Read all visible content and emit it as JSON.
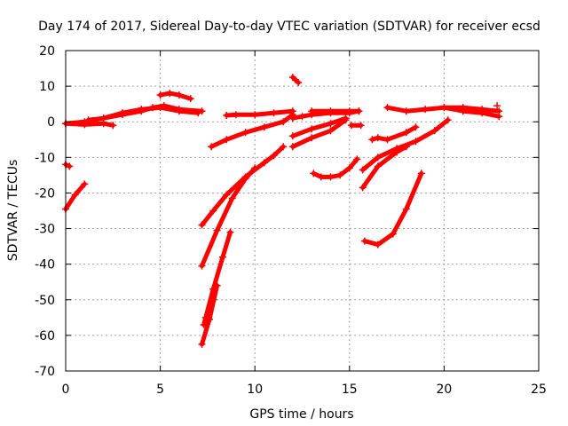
{
  "chart_data": {
    "type": "scatter",
    "title": "Day 174 of 2017, Sidereal Day-to-day VTEC variation (SDTVAR) for receiver ecsd",
    "xlabel": "GPS time / hours",
    "ylabel": "SDTVAR / TECUs",
    "xlim": [
      0,
      25
    ],
    "ylim": [
      -70,
      20
    ],
    "xticks": [
      "0",
      "5",
      "10",
      "15",
      "20",
      "25"
    ],
    "yticks": [
      "-70",
      "-60",
      "-50",
      "-40",
      "-30",
      "-20",
      "-10",
      "0",
      "10",
      "20"
    ],
    "grid": true,
    "legend": "none",
    "marker": "plus",
    "color": "#ff0000",
    "series": [
      {
        "x": [
          0.0,
          1.0,
          2.0,
          3.0,
          4.0,
          4.6,
          5.2,
          6.0,
          7.2
        ],
        "y": [
          -0.5,
          0.0,
          1.0,
          2.0,
          3.0,
          4.0,
          4.5,
          3.5,
          3.0
        ]
      },
      {
        "x": [
          0.0,
          1.0,
          2.0,
          2.5
        ],
        "y": [
          -0.5,
          -0.8,
          -0.5,
          -1.0
        ]
      },
      {
        "x": [
          1.2,
          2.0,
          3.0,
          4.0,
          5.0,
          6.0,
          7.0
        ],
        "y": [
          0.5,
          1.0,
          2.5,
          3.5,
          4.0,
          3.0,
          2.5
        ]
      },
      {
        "x": [
          5.0,
          5.5,
          6.0,
          6.6
        ],
        "y": [
          7.5,
          8.0,
          7.5,
          6.5
        ]
      },
      {
        "x": [
          0.0,
          0.2
        ],
        "y": [
          -12.0,
          -12.5
        ]
      },
      {
        "x": [
          0.0,
          0.5,
          1.0
        ],
        "y": [
          -24.5,
          -20.5,
          -17.5
        ]
      },
      {
        "x": [
          7.7,
          8.5,
          9.5,
          10.5,
          11.5,
          12.0
        ],
        "y": [
          -7.0,
          -5.0,
          -3.0,
          -1.5,
          0.0,
          2.0
        ]
      },
      {
        "x": [
          8.5,
          9.0,
          10.0,
          11.0,
          12.0
        ],
        "y": [
          1.8,
          2.0,
          2.0,
          2.5,
          3.0
        ]
      },
      {
        "x": [
          12.0,
          12.3
        ],
        "y": [
          12.5,
          11.0
        ]
      },
      {
        "x": [
          12.0,
          12.5,
          13.0,
          14.0,
          15.0,
          15.5
        ],
        "y": [
          1.0,
          1.5,
          2.0,
          2.5,
          2.5,
          3.0
        ]
      },
      {
        "x": [
          13.0,
          14.0,
          15.0,
          15.5
        ],
        "y": [
          3.0,
          3.0,
          3.0,
          3.0
        ]
      },
      {
        "x": [
          12.0,
          13.0,
          14.0,
          14.8
        ],
        "y": [
          -4.0,
          -2.0,
          -0.5,
          1.0
        ]
      },
      {
        "x": [
          12.0,
          13.0,
          14.0,
          14.8
        ],
        "y": [
          -7.0,
          -4.5,
          -2.5,
          0.5
        ]
      },
      {
        "x": [
          15.1,
          15.6
        ],
        "y": [
          -1.0,
          -1.0
        ]
      },
      {
        "x": [
          13.1,
          13.5,
          14.0,
          14.5,
          15.0,
          15.4
        ],
        "y": [
          -14.5,
          -15.5,
          -15.5,
          -15.0,
          -13.0,
          -10.5
        ]
      },
      {
        "x": [
          16.2,
          16.5,
          17.0,
          18.0,
          18.5
        ],
        "y": [
          -5.0,
          -4.5,
          -5.0,
          -3.0,
          -1.5
        ]
      },
      {
        "x": [
          15.7,
          16.5,
          17.5,
          18.5,
          19.5,
          20.2
        ],
        "y": [
          -13.5,
          -10.0,
          -7.5,
          -5.5,
          -2.5,
          0.5
        ]
      },
      {
        "x": [
          15.7,
          16.5,
          17.5,
          18.0
        ],
        "y": [
          -18.5,
          -12.5,
          -8.5,
          -7.0
        ]
      },
      {
        "x": [
          15.8,
          16.5,
          17.3,
          18.0,
          18.8
        ],
        "y": [
          -33.5,
          -34.5,
          -31.5,
          -24.5,
          -14.5
        ]
      },
      {
        "x": [
          17.0,
          18.0,
          19.0,
          20.0,
          21.0,
          22.0,
          22.9
        ],
        "y": [
          4.0,
          3.0,
          3.5,
          4.0,
          4.0,
          3.5,
          3.0
        ]
      },
      {
        "x": [
          20.0,
          21.0,
          22.0,
          22.9
        ],
        "y": [
          4.0,
          3.0,
          2.5,
          1.5
        ]
      },
      {
        "x": [
          22.8
        ],
        "y": [
          4.5
        ]
      },
      {
        "x": [
          7.2,
          7.8,
          8.5,
          9.5,
          10.5,
          11.0,
          11.5
        ],
        "y": [
          -29.0,
          -25.0,
          -20.5,
          -15.5,
          -11.5,
          -9.5,
          -7.0
        ]
      },
      {
        "x": [
          7.2,
          8.0,
          8.8,
          9.5,
          10.0
        ],
        "y": [
          -40.5,
          -30.5,
          -21.5,
          -16.0,
          -13.0
        ]
      },
      {
        "x": [
          7.3,
          7.8,
          8.3,
          8.7
        ],
        "y": [
          -57.0,
          -47.0,
          -38.0,
          -31.0
        ]
      },
      {
        "x": [
          7.2,
          7.6,
          8.0
        ],
        "y": [
          -62.5,
          -55.5,
          -46.0
        ]
      },
      {
        "x": [
          7.4,
          7.8
        ],
        "y": [
          -55.0,
          -50.0
        ]
      }
    ]
  }
}
